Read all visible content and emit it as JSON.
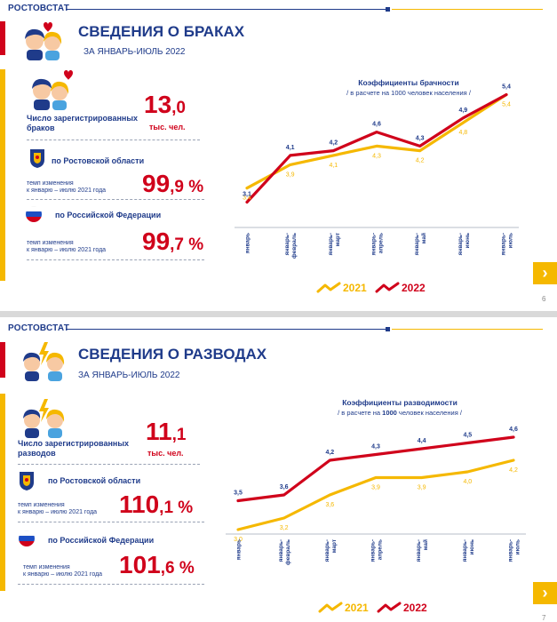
{
  "slide1": {
    "brand": "РОСТОВСТАТ",
    "title": "СВЕДЕНИЯ О БРАКАХ",
    "subtitle": "ЗА ЯНВАРЬ-ИЮЛЬ 2022",
    "count_label": "Число зарегистрированных браков",
    "count_int": "13",
    "count_dec": ",0",
    "count_unit": "тыс. чел.",
    "region_label": "по Ростовской области",
    "region_rate_label": "темп изменения\nк январю – июлю 2021 года",
    "region_rate_int": "99",
    "region_rate_dec": ",9",
    "region_rate_pct": " %",
    "rf_label": "по Российской Федерации",
    "rf_rate_label": "темп изменения\nк январю – июлю 2021 года",
    "rf_rate_int": "99",
    "rf_rate_dec": ",7",
    "rf_rate_pct": " %",
    "page": "6",
    "nav_arrow": "›",
    "chart_title": "Коэффициенты брачности",
    "chart_sub": "/ в расчете на 1000 человек населения /"
  },
  "slide2": {
    "brand": "РОСТОВСТАТ",
    "title": "СВЕДЕНИЯ О РАЗВОДАХ",
    "subtitle": "ЗА ЯНВАРЬ-ИЮЛЬ 2022",
    "count_label": "Число зарегистрированных разводов",
    "count_int": "11",
    "count_dec": ",1",
    "count_unit": "тыс. чел.",
    "region_label": "по Ростовской области",
    "region_rate_label": "темп изменения\nк январю – июлю 2021 года",
    "region_rate_int": "110",
    "region_rate_dec": ",1",
    "region_rate_pct": " %",
    "rf_label": "по Российской Федерации",
    "rf_rate_label": "темп изменения\nк январю – июлю 2021 года",
    "rf_rate_int": "101",
    "rf_rate_dec": ",6",
    "rf_rate_pct": " %",
    "page": "7",
    "nav_arrow": "›",
    "chart_title": "Коэффициенты разводимости",
    "chart_sub_pre": "/ в расчете на ",
    "chart_sub_bold": "1000",
    "chart_sub_post": " человек населения /"
  },
  "colors": {
    "blue": "#1f3b8a",
    "red": "#d0021b",
    "yellow": "#f5b800"
  },
  "chart_data": [
    {
      "type": "line",
      "title": "Коэффициенты брачности",
      "subtitle": "/ в расчете на 1000 человек населения /",
      "categories": [
        "январь",
        "январь-февраль",
        "январь-март",
        "январь-апрель",
        "январь-май",
        "январь-июнь",
        "январь-июль"
      ],
      "series": [
        {
          "name": "2021",
          "color": "#f5b800",
          "values": [
            3.4,
            3.9,
            4.1,
            4.3,
            4.2,
            4.8,
            5.4
          ],
          "labels": [
            "3,4",
            "3,9",
            "4,1",
            "4,3",
            "4,2",
            "4,8",
            "5,4"
          ]
        },
        {
          "name": "2022",
          "color": "#d0021b",
          "values": [
            3.1,
            4.1,
            4.2,
            4.6,
            4.3,
            4.9,
            5.4
          ],
          "labels": [
            "3,1",
            "4,1",
            "4,2",
            "4,6",
            "4,3",
            "4,9",
            "5,4"
          ]
        }
      ],
      "ylim": [
        2.9,
        5.6
      ],
      "legend": "bottom"
    },
    {
      "type": "line",
      "title": "Коэффициенты разводимости",
      "subtitle": "/ в расчете на 1000 человек населения /",
      "categories": [
        "январь",
        "январь-февраль",
        "январь-март",
        "январь-апрель",
        "январь-май",
        "январь-июнь",
        "январь-июль"
      ],
      "series": [
        {
          "name": "2021",
          "color": "#f5b800",
          "values": [
            3.0,
            3.2,
            3.6,
            3.9,
            3.9,
            4.0,
            4.2
          ],
          "labels": [
            "3,0",
            "3,2",
            "3,6",
            "3,9",
            "3,9",
            "4,0",
            "4,2"
          ]
        },
        {
          "name": "2022",
          "color": "#d0021b",
          "values": [
            3.5,
            3.6,
            4.2,
            4.3,
            4.4,
            4.5,
            4.6
          ],
          "labels": [
            "3,5",
            "3,6",
            "4,2",
            "4,3",
            "4,4",
            "4,5",
            "4,6"
          ]
        }
      ],
      "ylim": [
        2.8,
        4.8
      ],
      "legend": "bottom"
    }
  ]
}
